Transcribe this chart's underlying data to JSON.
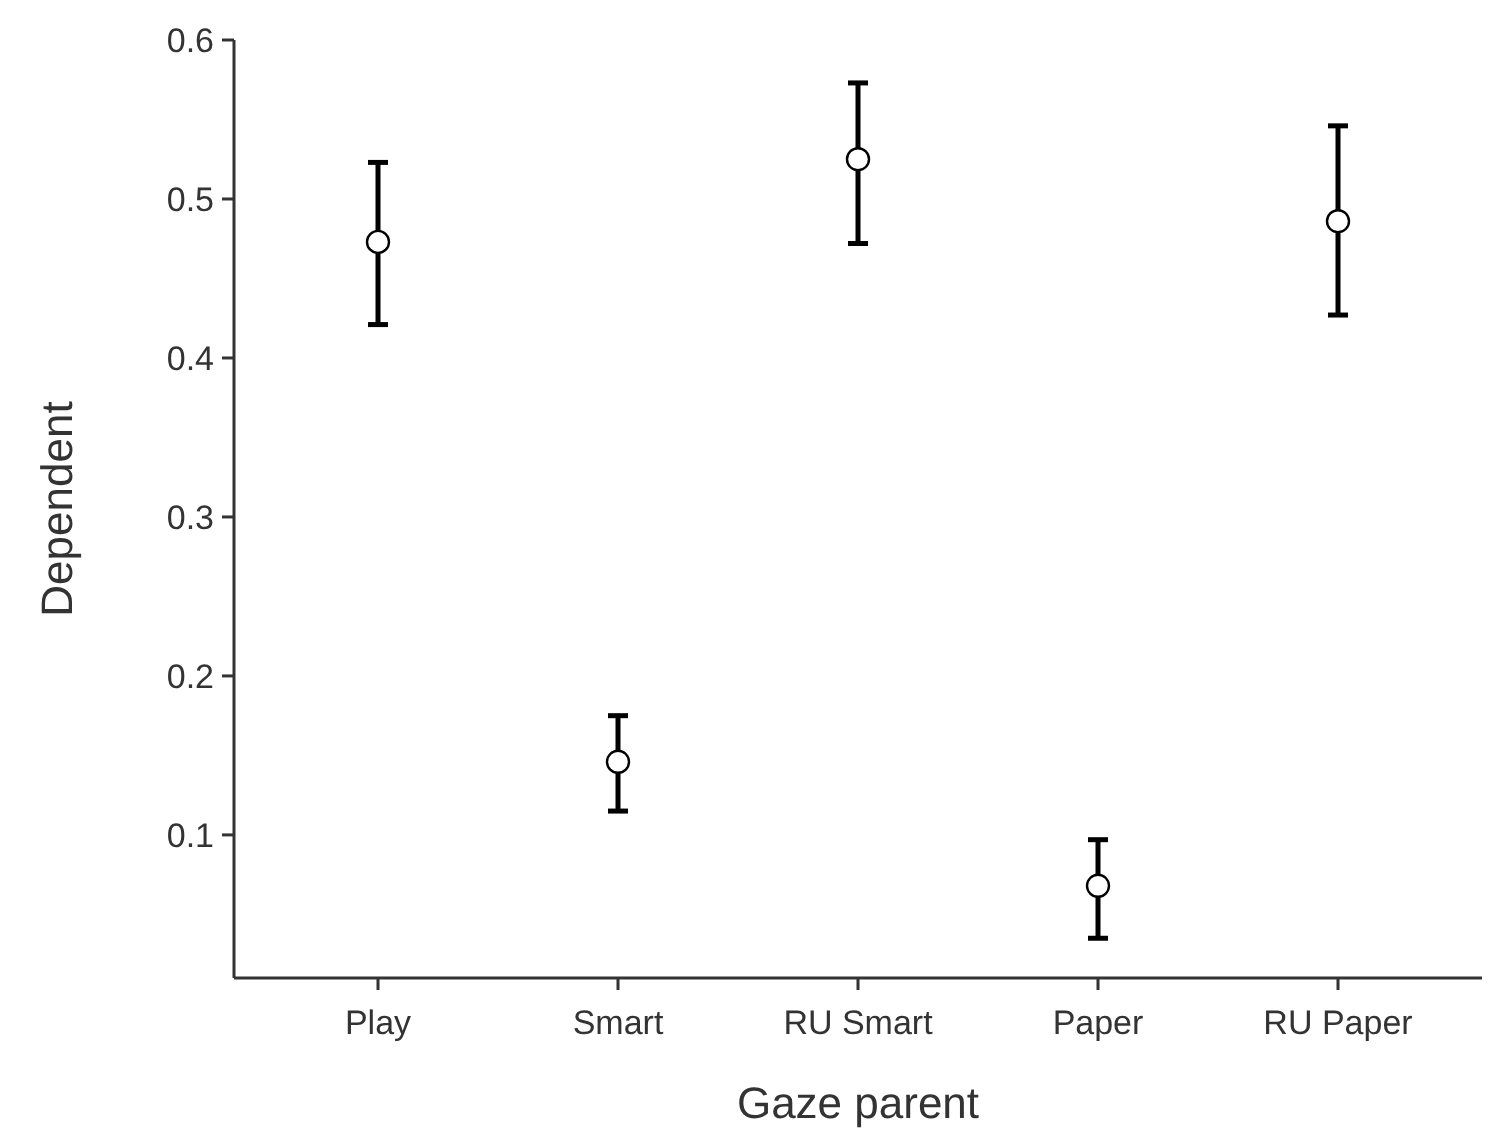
{
  "chart_data": {
    "type": "scatter",
    "xlabel": "Gaze parent",
    "ylabel": "Dependent",
    "categories": [
      "Play",
      "Smart",
      "RU Smart",
      "Paper",
      "RU Paper"
    ],
    "values": [
      0.473,
      0.146,
      0.525,
      0.068,
      0.486
    ],
    "errors": [
      [
        0.421,
        0.523
      ],
      [
        0.115,
        0.175
      ],
      [
        0.472,
        0.573
      ],
      [
        0.035,
        0.097
      ],
      [
        0.427,
        0.546
      ]
    ],
    "color": "#000000",
    "marker": "circle",
    "grid": false,
    "ylim": [
      0.01,
      0.6
    ],
    "yticks": [
      0.1,
      0.2,
      0.3,
      0.4,
      0.5,
      0.6
    ]
  }
}
